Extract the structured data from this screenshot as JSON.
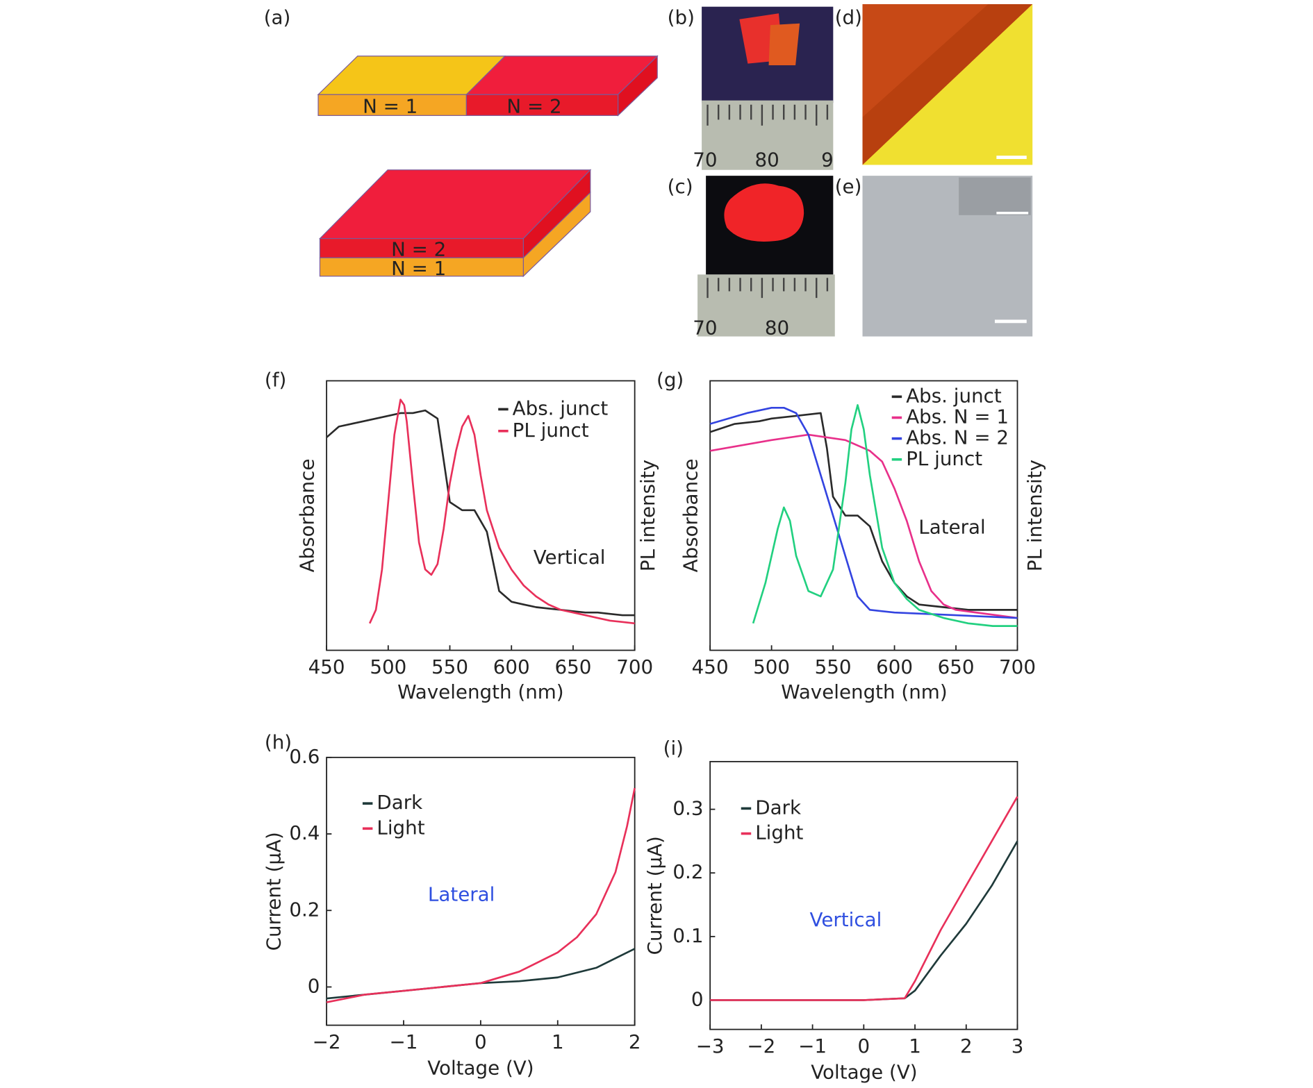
{
  "figure": {
    "panel_a": "(a)",
    "panel_b": "(b)",
    "panel_c": "(c)",
    "panel_d": "(d)",
    "panel_e": "(e)",
    "lateral_left": "N = 1",
    "lateral_right": "N = 2",
    "vertical_top": "N = 2",
    "vertical_bottom": "N = 1",
    "ruler_b": [
      "70",
      "80",
      "9"
    ],
    "ruler_c": [
      "70",
      "80"
    ]
  },
  "chart_data": [
    {
      "type": "line",
      "title": "(f)",
      "xlabel": "Wavelength (nm)",
      "ylabel": "Absorbance",
      "y2label": "PL intensity",
      "annotation": "Vertical",
      "xlim": [
        450,
        700
      ],
      "xticks": [
        450,
        500,
        550,
        600,
        650,
        700
      ],
      "ylim": [
        0,
        1
      ],
      "y2lim": [
        0,
        1
      ],
      "series": [
        {
          "name": "Abs. junct",
          "color": "#2a2a2a",
          "x": [
            450,
            460,
            470,
            480,
            490,
            500,
            510,
            520,
            530,
            540,
            550,
            560,
            570,
            580,
            590,
            600,
            610,
            620,
            630,
            640,
            650,
            660,
            670,
            680,
            690,
            700
          ],
          "values": [
            0.79,
            0.83,
            0.84,
            0.85,
            0.86,
            0.87,
            0.88,
            0.88,
            0.89,
            0.86,
            0.55,
            0.52,
            0.52,
            0.44,
            0.22,
            0.18,
            0.17,
            0.16,
            0.155,
            0.15,
            0.145,
            0.14,
            0.14,
            0.135,
            0.13,
            0.13
          ]
        },
        {
          "name": "PL junct",
          "color": "#e8305a",
          "axis": "y2",
          "x": [
            485,
            490,
            495,
            500,
            505,
            510,
            513,
            515,
            520,
            525,
            530,
            535,
            540,
            545,
            550,
            555,
            560,
            565,
            570,
            575,
            580,
            590,
            600,
            610,
            620,
            630,
            640,
            650,
            660,
            670,
            680,
            690,
            700
          ],
          "values": [
            0.1,
            0.15,
            0.3,
            0.55,
            0.8,
            0.93,
            0.91,
            0.85,
            0.62,
            0.4,
            0.3,
            0.28,
            0.32,
            0.45,
            0.62,
            0.74,
            0.83,
            0.87,
            0.8,
            0.65,
            0.52,
            0.38,
            0.3,
            0.24,
            0.2,
            0.17,
            0.15,
            0.14,
            0.13,
            0.12,
            0.11,
            0.105,
            0.1
          ]
        }
      ]
    },
    {
      "type": "line",
      "title": "(g)",
      "xlabel": "Wavelength (nm)",
      "ylabel": "Absorbance",
      "y2label": "PL intensity",
      "annotation": "Lateral",
      "xlim": [
        450,
        700
      ],
      "xticks": [
        450,
        500,
        550,
        600,
        650,
        700
      ],
      "ylim": [
        0,
        1
      ],
      "y2lim": [
        0,
        1
      ],
      "series": [
        {
          "name": "Abs. junct",
          "color": "#2a2a2a",
          "x": [
            450,
            470,
            490,
            500,
            520,
            540,
            545,
            550,
            560,
            570,
            580,
            590,
            600,
            610,
            620,
            640,
            660,
            700
          ],
          "values": [
            0.81,
            0.84,
            0.85,
            0.86,
            0.87,
            0.88,
            0.75,
            0.57,
            0.5,
            0.5,
            0.46,
            0.33,
            0.25,
            0.2,
            0.17,
            0.16,
            0.15,
            0.15
          ]
        },
        {
          "name": "Abs. N = 1",
          "color": "#e8308a",
          "x": [
            450,
            500,
            530,
            560,
            580,
            590,
            600,
            610,
            620,
            630,
            640,
            650,
            700
          ],
          "values": [
            0.74,
            0.78,
            0.8,
            0.78,
            0.74,
            0.7,
            0.6,
            0.48,
            0.33,
            0.22,
            0.17,
            0.15,
            0.12
          ]
        },
        {
          "name": "Abs. N = 2",
          "color": "#3344e0",
          "x": [
            450,
            480,
            500,
            510,
            520,
            530,
            540,
            550,
            560,
            570,
            580,
            600,
            650,
            700
          ],
          "values": [
            0.84,
            0.88,
            0.9,
            0.9,
            0.88,
            0.8,
            0.65,
            0.5,
            0.35,
            0.2,
            0.15,
            0.14,
            0.13,
            0.12
          ]
        },
        {
          "name": "PL junct",
          "color": "#22d080",
          "axis": "y2",
          "x": [
            485,
            495,
            505,
            510,
            515,
            520,
            530,
            540,
            550,
            560,
            565,
            570,
            575,
            580,
            590,
            600,
            610,
            620,
            640,
            660,
            680,
            700
          ],
          "values": [
            0.1,
            0.25,
            0.45,
            0.53,
            0.48,
            0.35,
            0.22,
            0.2,
            0.3,
            0.62,
            0.82,
            0.91,
            0.82,
            0.65,
            0.38,
            0.25,
            0.19,
            0.15,
            0.12,
            0.1,
            0.09,
            0.09
          ]
        }
      ]
    },
    {
      "type": "line",
      "title": "(h)",
      "xlabel": "Voltage (V)",
      "ylabel": "Current (µA)",
      "annotation": "Lateral",
      "annotation_color": "#2f4fe0",
      "xlim": [
        -2,
        2
      ],
      "xticks": [
        {
          "value": -2,
          "label": "−2"
        },
        {
          "value": -1,
          "label": "−1"
        },
        0,
        1,
        2
      ],
      "ylim": [
        -0.1,
        0.6
      ],
      "yticks": [
        0,
        0.2,
        0.4,
        0.6
      ],
      "series": [
        {
          "name": "Dark",
          "color": "#1f3a3a",
          "x": [
            -2,
            -1,
            0,
            0.5,
            1,
            1.5,
            2
          ],
          "values": [
            -0.03,
            -0.01,
            0.01,
            0.015,
            0.025,
            0.05,
            0.1
          ]
        },
        {
          "name": "Light",
          "color": "#e8305a",
          "x": [
            -2,
            -1.5,
            -1,
            -0.5,
            0,
            0.5,
            1,
            1.25,
            1.5,
            1.75,
            1.9,
            2
          ],
          "values": [
            -0.04,
            -0.02,
            -0.01,
            0,
            0.01,
            0.04,
            0.09,
            0.13,
            0.19,
            0.3,
            0.42,
            0.52
          ]
        }
      ]
    },
    {
      "type": "line",
      "title": "(i)",
      "xlabel": "Voltage (V)",
      "ylabel": "Current (µA)",
      "annotation": "Vertical",
      "annotation_color": "#2f4fe0",
      "xlim": [
        -3,
        3
      ],
      "xticks": [
        {
          "value": -3,
          "label": "−3"
        },
        {
          "value": -2,
          "label": "−2"
        },
        {
          "value": -1,
          "label": "−1"
        },
        0,
        1,
        2,
        3
      ],
      "ylim": [
        -0.046,
        0.375
      ],
      "yticks": [
        0,
        0.1,
        0.2,
        0.3
      ],
      "series": [
        {
          "name": "Dark",
          "color": "#1f3a3a",
          "x": [
            -3,
            0,
            0.8,
            1,
            1.5,
            2,
            2.5,
            3
          ],
          "values": [
            0,
            0,
            0.003,
            0.015,
            0.07,
            0.12,
            0.18,
            0.25
          ]
        },
        {
          "name": "Light",
          "color": "#e8305a",
          "x": [
            -3,
            0,
            0.8,
            1,
            1.5,
            2,
            2.5,
            3
          ],
          "values": [
            0,
            0,
            0.003,
            0.03,
            0.11,
            0.18,
            0.25,
            0.32
          ]
        }
      ]
    }
  ]
}
